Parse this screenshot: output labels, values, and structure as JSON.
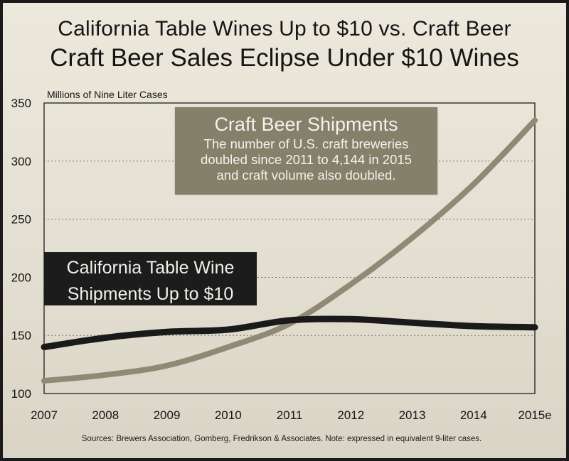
{
  "chart_data": {
    "type": "line",
    "title": "California Table Wines Up to $10 vs. Craft Beer",
    "subtitle": "Craft Beer Sales Eclipse Under $10 Wines",
    "ylabel": "Millions of Nine Liter Cases",
    "xlabel": "",
    "categories": [
      "2007",
      "2008",
      "2009",
      "2010",
      "2011",
      "2012",
      "2013",
      "2014",
      "2015e"
    ],
    "yticks": [
      "100",
      "150",
      "200",
      "250",
      "300",
      "350"
    ],
    "ylim": [
      100,
      350
    ],
    "grid": "horizontal-dashed",
    "series": [
      {
        "name": "Craft Beer Shipments",
        "color": "#8f8a74",
        "values": [
          111,
          116,
          124,
          140,
          160,
          194,
          234,
          280,
          335
        ]
      },
      {
        "name": "California Table Wine Shipments Up to $10",
        "color": "#1a1a1a",
        "values": [
          140,
          148,
          153,
          155,
          163,
          164,
          161,
          158,
          157
        ]
      }
    ],
    "annotations": {
      "beer_heading": "Craft Beer Shipments",
      "beer_line1": "The number of U.S. craft breweries",
      "beer_line2": "doubled since 2011 to 4,144 in 2015",
      "beer_line3": "and craft volume also doubled.",
      "wine_line1": "California Table Wine",
      "wine_line2": "Shipments Up to $10"
    },
    "source": "Sources: Brewers Association, Gomberg, Fredrikson & Associates. Note: expressed in equivalent 9-liter cases."
  }
}
